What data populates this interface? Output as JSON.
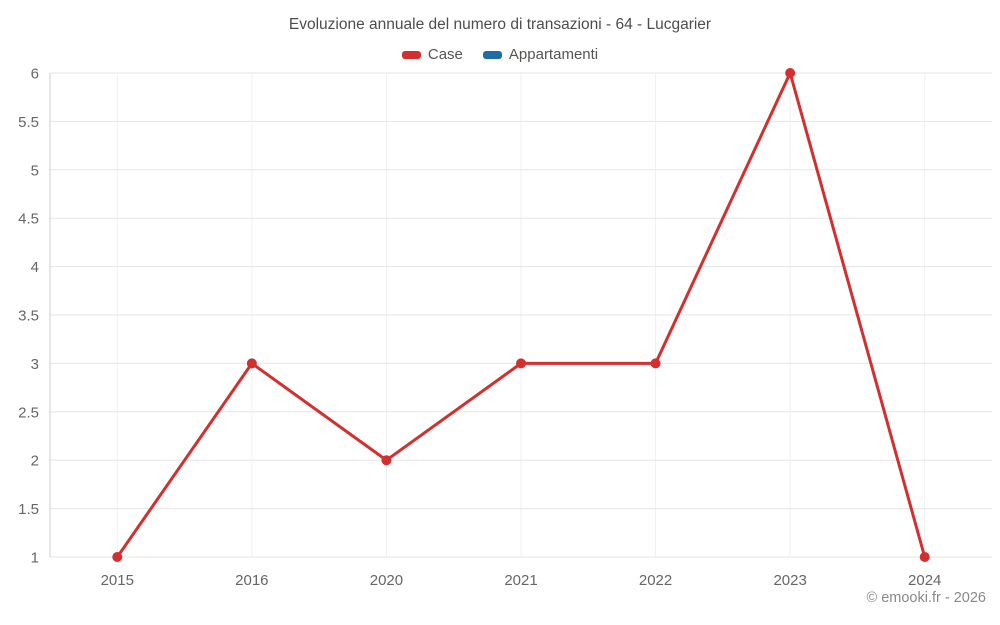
{
  "chart_data": {
    "type": "line",
    "title": "Evoluzione annuale del numero di transazioni - 64 - Lucgarier",
    "categories": [
      "2015",
      "2016",
      "2020",
      "2021",
      "2022",
      "2023",
      "2024"
    ],
    "series": [
      {
        "name": "Case",
        "color": "#d32f2f",
        "values": [
          1,
          3,
          2,
          3,
          3,
          6,
          1
        ],
        "visible": true
      },
      {
        "name": "Appartamenti",
        "color": "#1c6ea4",
        "values": [],
        "visible": false
      }
    ],
    "yticks": [
      1,
      1.5,
      2,
      2.5,
      3,
      3.5,
      4,
      4.5,
      5,
      5.5,
      6
    ],
    "ylim": [
      1,
      6
    ],
    "xlabel": "",
    "ylabel": "",
    "grid": true,
    "legend_position": "top"
  },
  "legend": {
    "items": [
      {
        "label": "Case",
        "color": "#d32f2f"
      },
      {
        "label": "Appartamenti",
        "color": "#1c6ea4"
      }
    ]
  },
  "footer": {
    "credit": "© emooki.fr - 2026"
  },
  "colors": {
    "background": "#ffffff",
    "grid_horizontal": "#e6e6e6",
    "grid_vertical": "#f0f0f0",
    "axis_line": "#cccccc",
    "tick_text": "#666666",
    "title_text": "#4d4d4d",
    "credit_text": "#888888"
  }
}
